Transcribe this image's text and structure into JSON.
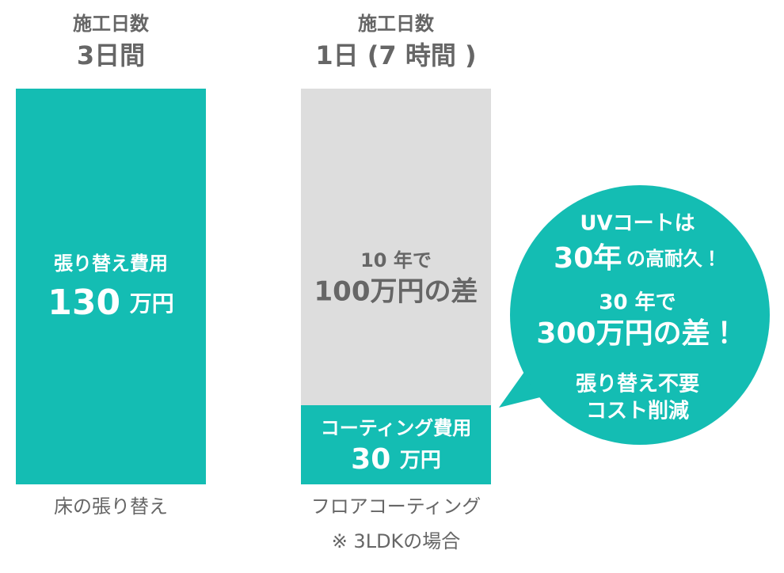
{
  "left": {
    "duration_label": "施工日数",
    "duration": "3日間",
    "cost_label": "張り替え費用",
    "cost_value": "130",
    "cost_unit": "万円",
    "caption": "床の張り替え"
  },
  "right": {
    "duration_label": "施工日数",
    "duration": "1日 (7 時間 )",
    "difference_period": "10 年で",
    "difference": "100万円の差",
    "cost_label": "コーティング費用",
    "cost_value": "30",
    "cost_unit": "万円",
    "caption": "フロアコーティング",
    "note": "※ 3LDKの場合"
  },
  "bubble": {
    "line1": "UVコートは",
    "durability_value": "30年",
    "durability_text": "の高耐久！",
    "period": "30 年で",
    "savings": "300万円の差！",
    "line5": "張り替え不要",
    "line6": "コスト削減"
  }
}
